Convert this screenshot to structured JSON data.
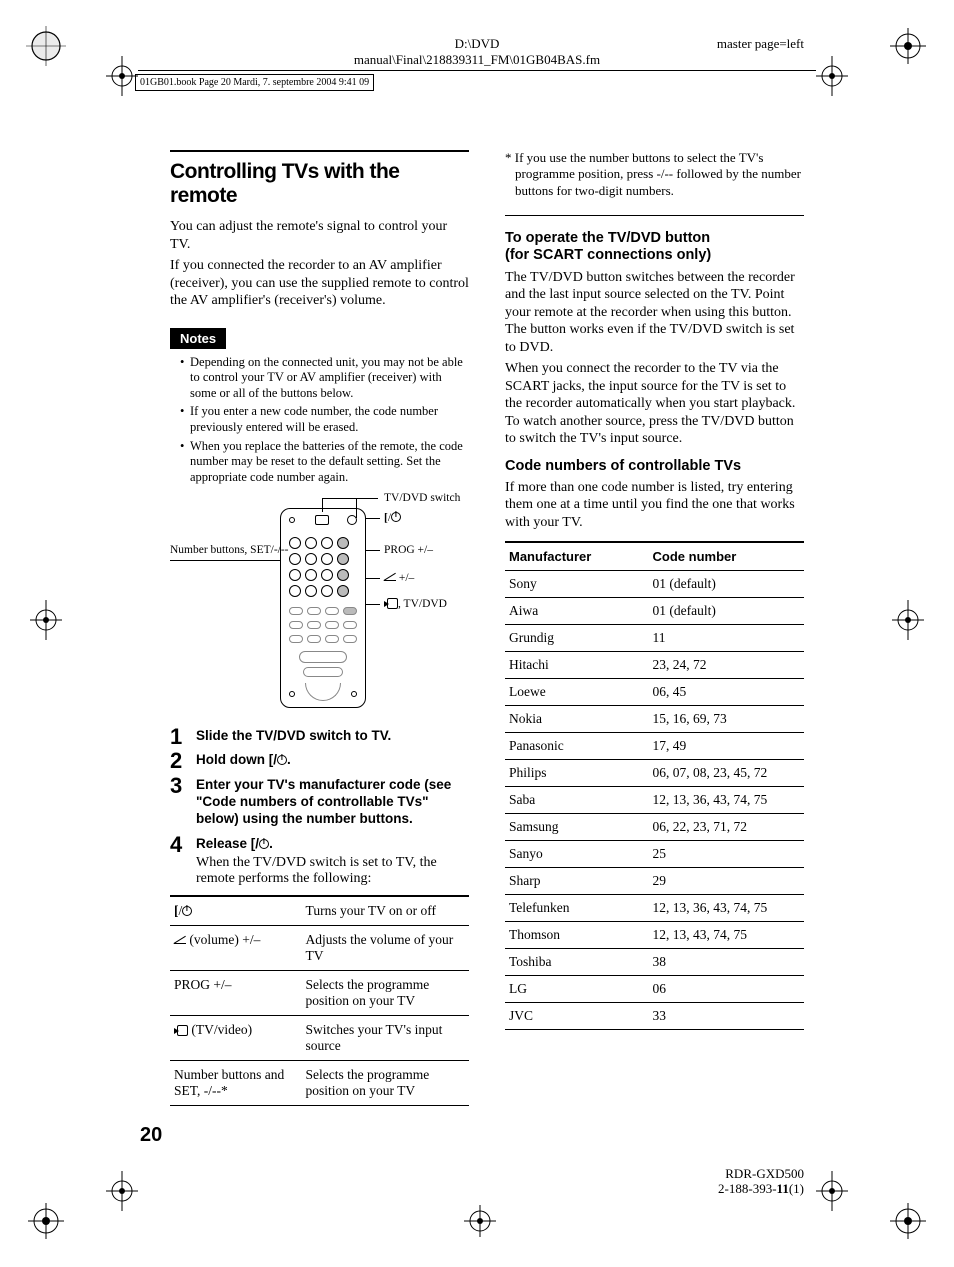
{
  "header": {
    "path1": "D:\\DVD",
    "path2": "manual\\Final\\218839311_FM\\01GB04BAS.fm",
    "master": "master page=left",
    "booktag": "01GB01.book  Page 20  Mardi, 7. septembre 2004  9:41 09"
  },
  "left": {
    "title": "Controlling TVs with the remote",
    "intro1": "You can adjust the remote's signal to control your TV.",
    "intro2": "If you connected the recorder to an AV amplifier (receiver), you can use the supplied remote to control the AV amplifier's (receiver's) volume.",
    "notes_label": "Notes",
    "notes": [
      "Depending on the connected unit, you may not be able to control your TV or AV amplifier (receiver) with some or all of the buttons below.",
      "If you enter a new code number, the code number previously entered will be erased.",
      "When you replace the batteries of the remote, the code number may be reset to the default setting. Set the appropriate code number again."
    ],
    "fig": {
      "left_label": "Number buttons, SET/-/--",
      "r1": "TV/DVD switch",
      "r2_a": "[",
      "r2_b": "/",
      "r3": "PROG +/–",
      "r4_a": " +/–",
      "r5_a": ", TV/DVD"
    },
    "steps": [
      {
        "head": "Slide the TV/DVD switch to TV."
      },
      {
        "head_a": "Hold down [",
        "head_b": "/",
        "head_c": "."
      },
      {
        "head": "Enter your TV's manufacturer code (see \"Code numbers of controllable TVs\" below) using the number buttons."
      },
      {
        "head_a": "Release [",
        "head_b": "/",
        "head_c": ".",
        "body": "When the TV/DVD switch is set to TV, the remote performs the following:"
      }
    ],
    "functable": [
      {
        "a_pre": "[",
        "a_mid": "/",
        "b": "Turns your TV on or off"
      },
      {
        "a_post": " (volume) +/–",
        "a_icon": "vol",
        "b": "Adjusts the volume of your TV"
      },
      {
        "a": "PROG +/–",
        "b": "Selects the programme position on your TV"
      },
      {
        "a_post": " (TV/video)",
        "a_icon": "inp",
        "b": "Switches your TV's input source"
      },
      {
        "a": "Number buttons and SET, -/--*",
        "b": "Selects the programme position on your TV"
      }
    ]
  },
  "right": {
    "footnote": "* If you use the number buttons to select the TV's programme position, press -/-- followed by the number buttons for two-digit numbers.",
    "h2a": "To operate the TV/DVD button",
    "h2a_sub": "(for SCART connections only)",
    "p1": "The TV/DVD button switches between the recorder and the last input source selected on the TV. Point your remote at the recorder when using this button. The button works even if the TV/DVD switch is set to DVD.",
    "p2": "When you connect the recorder to the TV via the SCART jacks, the input source for the TV is set to the recorder automatically when you start playback. To watch another source, press the TV/DVD button to switch the TV's input source.",
    "h2b": "Code numbers of controllable TVs",
    "p3": "If more than one code number is listed, try entering them one at a time until you find the one that works with your TV.",
    "table": {
      "h1": "Manufacturer",
      "h2": "Code number",
      "rows": [
        [
          "Sony",
          "01 (default)"
        ],
        [
          "Aiwa",
          "01 (default)"
        ],
        [
          "Grundig",
          "11"
        ],
        [
          "Hitachi",
          "23, 24, 72"
        ],
        [
          "Loewe",
          "06, 45"
        ],
        [
          "Nokia",
          "15, 16, 69, 73"
        ],
        [
          "Panasonic",
          "17, 49"
        ],
        [
          "Philips",
          "06, 07, 08, 23, 45, 72"
        ],
        [
          "Saba",
          "12, 13, 36, 43, 74, 75"
        ],
        [
          "Samsung",
          "06, 22, 23, 71, 72"
        ],
        [
          "Sanyo",
          "25"
        ],
        [
          "Sharp",
          "29"
        ],
        [
          "Telefunken",
          "12, 13, 36, 43, 74, 75"
        ],
        [
          "Thomson",
          "12, 13, 43, 74, 75"
        ],
        [
          "Toshiba",
          "38"
        ],
        [
          "LG",
          "06"
        ],
        [
          "JVC",
          "33"
        ]
      ]
    }
  },
  "page_num": "20",
  "footer": {
    "l1": "RDR-GXD500",
    "l2": "2-188-393-",
    "l2b": "11",
    "l2c": "(1)"
  }
}
